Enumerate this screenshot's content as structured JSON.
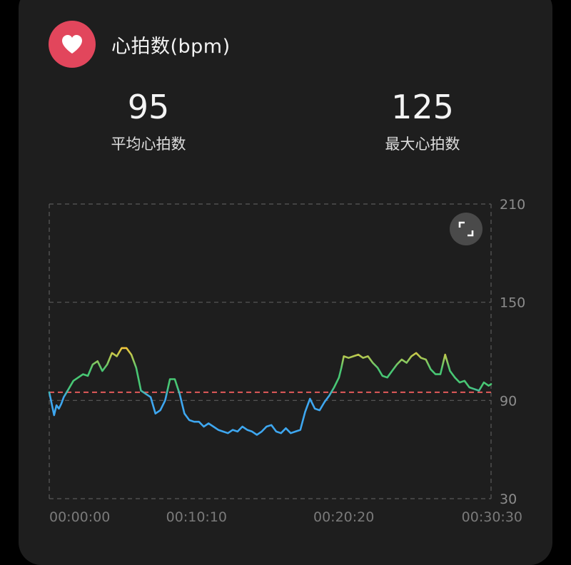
{
  "header": {
    "title": "心拍数(bpm)",
    "icon": "heart-icon",
    "icon_bg": "#e2465c"
  },
  "stats": {
    "average": {
      "value": "95",
      "label": "平均心拍数"
    },
    "max": {
      "value": "125",
      "label": "最大心拍数"
    }
  },
  "chart_data": {
    "type": "line",
    "title": "",
    "xlabel": "",
    "ylabel": "",
    "ylim": [
      30,
      210
    ],
    "y_ticks": [
      "210",
      "150",
      "90",
      "30"
    ],
    "x_ticks": [
      "00:00:00",
      "00:10:10",
      "00:20:20",
      "00:30:30"
    ],
    "x_range_sec": [
      0,
      1830
    ],
    "average_line": 95,
    "average_line_color": "#e05a5a",
    "grid": "dashed",
    "zone_colors": {
      "low": "#3ea7f0",
      "mid": "#48c774",
      "high": "#f2c83c"
    },
    "series": [
      {
        "x": [
          0,
          10,
          20,
          30,
          40,
          50,
          60,
          80,
          100,
          120,
          140,
          160,
          180,
          200,
          220,
          240,
          260,
          280,
          300,
          320,
          340,
          360,
          380,
          400,
          420,
          440,
          460,
          480,
          500,
          520,
          540,
          560,
          580,
          600,
          620,
          640,
          660,
          680,
          700,
          720,
          740,
          760,
          780,
          800,
          820,
          840,
          860,
          880,
          900,
          920,
          940,
          960,
          980,
          1000,
          1020,
          1040,
          1060,
          1080,
          1100,
          1120,
          1140,
          1160,
          1180,
          1200,
          1210,
          1220,
          1240,
          1260,
          1280,
          1300,
          1320,
          1340,
          1360,
          1380,
          1400,
          1420,
          1440,
          1460,
          1480,
          1500,
          1520,
          1540,
          1560,
          1580,
          1600,
          1620,
          1640,
          1660,
          1680,
          1700,
          1720,
          1740,
          1760,
          1780,
          1800,
          1820,
          1830
        ],
        "y": [
          95,
          88,
          81,
          87,
          85,
          88,
          92,
          97,
          102,
          104,
          106,
          105,
          112,
          114,
          108,
          112,
          119,
          117,
          122,
          122,
          118,
          110,
          96,
          94,
          92,
          82,
          84,
          90,
          103,
          103,
          94,
          82,
          78,
          77,
          77,
          74,
          76,
          74,
          72,
          71,
          70,
          72,
          71,
          74,
          72,
          71,
          69,
          71,
          74,
          75,
          71,
          70,
          73,
          70,
          71,
          72,
          83,
          91,
          85,
          84,
          89,
          93,
          98,
          104,
          110,
          117,
          116,
          117,
          118,
          116,
          117,
          113,
          110,
          105,
          104,
          108,
          112,
          115,
          113,
          117,
          119,
          116,
          115,
          109,
          106,
          106,
          118,
          108,
          104,
          101,
          102,
          98,
          97,
          96,
          101,
          99,
          100
        ]
      }
    ]
  }
}
